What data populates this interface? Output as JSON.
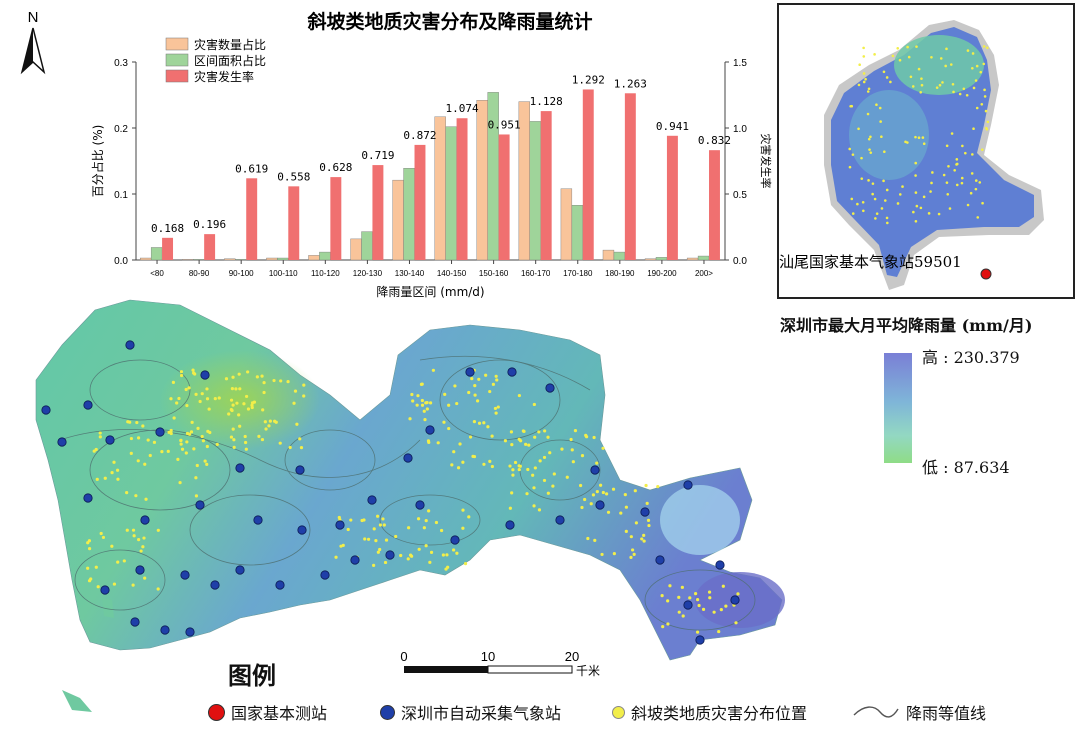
{
  "chart_data": {
    "type": "bar",
    "title": "斜坡类地质灾害分布及降雨量统计",
    "xlabel": "降雨量区间 (mm/d)",
    "ylabel": "百分占比 (%)",
    "y2label": "灾害发生率",
    "ylim": [
      0,
      0.3
    ],
    "y2lim": [
      0,
      1.5
    ],
    "yticks": [
      "0.0",
      "0.1",
      "0.2",
      "0.3"
    ],
    "y2ticks": [
      "0.0",
      "0.5",
      "1.0",
      "1.5"
    ],
    "categories": [
      "<80",
      "80-90",
      "90-100",
      "100-110",
      "110-120",
      "120-130",
      "130-140",
      "140-150",
      "150-160",
      "160-170",
      "170-180",
      "180-190",
      "190-200",
      "200>"
    ],
    "series": [
      {
        "name": "灾害数量占比",
        "color": "#f9c49a",
        "axis": "left",
        "values": [
          0.003,
          0.001,
          0.002,
          0.003,
          0.007,
          0.032,
          0.121,
          0.217,
          0.242,
          0.24,
          0.108,
          0.015,
          0.002,
          0.003
        ]
      },
      {
        "name": "区间面积占比",
        "color": "#9fd49a",
        "axis": "left",
        "values": [
          0.019,
          0.001,
          0.001,
          0.003,
          0.012,
          0.043,
          0.139,
          0.202,
          0.254,
          0.21,
          0.083,
          0.012,
          0.004,
          0.006
        ]
      },
      {
        "name": "灾害发生率",
        "color": "#f07070",
        "axis": "right",
        "values": [
          0.168,
          0.196,
          0.619,
          0.558,
          0.628,
          0.719,
          0.872,
          1.074,
          0.951,
          1.128,
          1.292,
          1.263,
          0.941,
          0.832
        ]
      }
    ],
    "data_labels": [
      "0.168",
      "0.196",
      "0.619",
      "0.558",
      "0.628",
      "0.719",
      "0.872",
      "1.074",
      "0.951",
      "1.128",
      "1.292",
      "1.263",
      "0.941",
      "0.832"
    ],
    "legend_position": "top-left"
  },
  "map": {
    "north_label": "N",
    "inset_station_label": "汕尾国家基本气象站59501",
    "legend_title": "深圳市最大月平均降雨量 (mm/月)",
    "high_label": "高 : 230.379",
    "low_label": "低 : 87.634",
    "scale_ticks": [
      "0",
      "10",
      "20"
    ],
    "scale_unit": "千米",
    "legend_heading": "图例",
    "legend_items": [
      {
        "label": "国家基本测站",
        "color": "#e01010"
      },
      {
        "label": "深圳市自动采集气象站",
        "color": "#1f3fa8"
      },
      {
        "label": "斜坡类地质灾害分布位置",
        "color": "#f2ee4a"
      },
      {
        "label": "降雨等值线",
        "color": "#555555"
      }
    ]
  }
}
